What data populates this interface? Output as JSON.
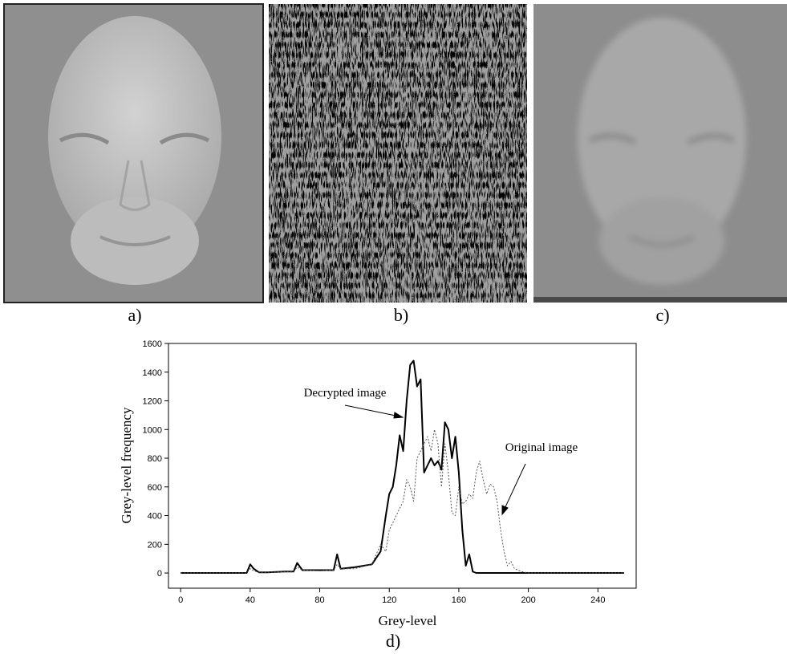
{
  "panels": [
    "a)",
    "b)",
    "c)"
  ],
  "chart_data": {
    "type": "line",
    "caption": "d)",
    "x_label": "Grey-level",
    "y_label": "Grey-level frequency",
    "x": [
      0,
      38,
      40,
      42,
      45,
      50,
      60,
      65,
      67,
      70,
      80,
      88,
      90,
      92,
      100,
      110,
      115,
      118,
      120,
      122,
      124,
      126,
      128,
      130,
      132,
      134,
      136,
      138,
      140,
      142,
      144,
      146,
      148,
      150,
      152,
      154,
      156,
      158,
      160,
      162,
      164,
      166,
      168,
      170,
      172,
      174,
      176,
      178,
      180,
      182,
      184,
      186,
      188,
      190,
      192,
      196,
      200,
      255
    ],
    "series": [
      {
        "name": "Decrypted image",
        "color": "#000000",
        "dash": "solid",
        "values": [
          0,
          0,
          60,
          30,
          5,
          5,
          10,
          10,
          70,
          20,
          20,
          20,
          130,
          30,
          40,
          60,
          150,
          400,
          550,
          600,
          750,
          960,
          850,
          1200,
          1450,
          1480,
          1300,
          1350,
          700,
          750,
          800,
          750,
          780,
          720,
          1050,
          1000,
          800,
          950,
          700,
          300,
          50,
          130,
          10,
          0,
          0,
          0,
          0,
          0,
          0,
          0,
          0,
          0,
          0,
          0,
          0,
          0,
          0,
          0
        ]
      },
      {
        "name": "Original image",
        "color": "#555555",
        "dash": "dotted",
        "values": [
          0,
          0,
          30,
          15,
          5,
          5,
          8,
          10,
          40,
          20,
          15,
          20,
          60,
          30,
          30,
          60,
          200,
          150,
          300,
          350,
          400,
          450,
          500,
          650,
          600,
          500,
          800,
          850,
          900,
          950,
          850,
          1000,
          900,
          600,
          900,
          700,
          420,
          400,
          600,
          480,
          500,
          550,
          520,
          700,
          780,
          650,
          550,
          620,
          600,
          500,
          300,
          150,
          50,
          80,
          30,
          10,
          0,
          0
        ]
      }
    ],
    "xlim": [
      -7,
      262
    ],
    "ylim": [
      -106,
      1600
    ],
    "xticks": [
      0,
      40,
      80,
      120,
      160,
      200,
      240
    ],
    "yticks": [
      0,
      200,
      400,
      600,
      800,
      1000,
      1200,
      1400,
      1600
    ]
  }
}
